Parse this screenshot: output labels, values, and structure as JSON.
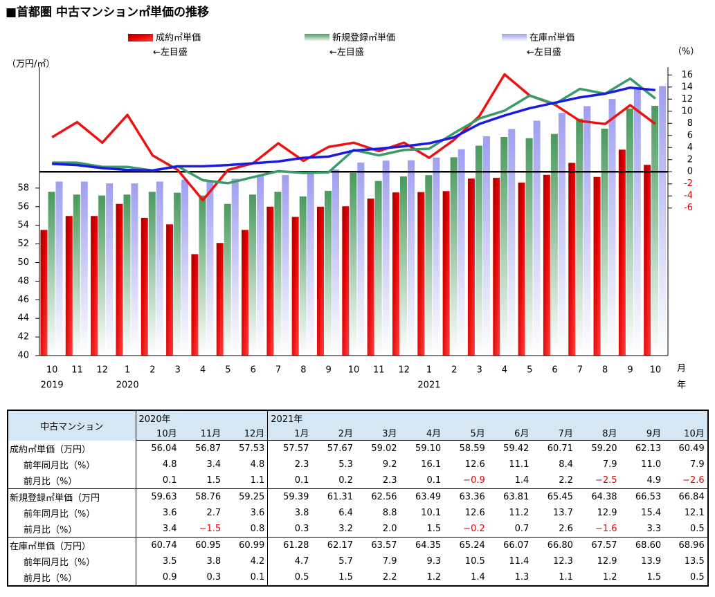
{
  "chart_data": {
    "type": "bar_line",
    "title": "■首都圏 中古マンション㎡単価の推移",
    "y_label": "（万円/㎡）",
    "y2_label": "（%）",
    "x_label": "月",
    "year_title": "年",
    "categories": [
      "10",
      "11",
      "12",
      "1",
      "2",
      "3",
      "4",
      "5",
      "6",
      "7",
      "8",
      "9",
      "10",
      "11",
      "12",
      "1",
      "2",
      "3",
      "4",
      "5",
      "6",
      "7",
      "8",
      "9",
      "10"
    ],
    "year_labels": [
      "2019",
      null,
      null,
      "2020",
      null,
      null,
      null,
      null,
      null,
      null,
      null,
      null,
      null,
      null,
      null,
      "2021",
      null,
      null,
      null,
      null,
      null,
      null,
      null,
      null,
      null
    ],
    "ylim": [
      40,
      71
    ],
    "yticks": [
      40,
      42,
      44,
      46,
      48,
      50,
      52,
      54,
      56,
      58
    ],
    "y2lim": [
      -30.4,
      17.3
    ],
    "y2ticks": [
      -6,
      -4,
      -2,
      0,
      2,
      4,
      6,
      8,
      10,
      12,
      14,
      16
    ],
    "series": [
      {
        "name": "成約㎡単価",
        "note": "←左目盛",
        "color": "#e00000",
        "line_color": "#ee1111",
        "values": [
          53.5,
          55.0,
          55.0,
          56.3,
          54.8,
          54.1,
          50.9,
          52.1,
          53.5,
          56.0,
          54.9,
          56.0,
          56.04,
          56.87,
          57.53,
          57.57,
          57.67,
          59.02,
          59.1,
          58.59,
          59.42,
          60.71,
          59.2,
          62.13,
          60.49
        ],
        "yoy": [
          5.7,
          8.2,
          4.8,
          9.4,
          2.7,
          0.3,
          -4.7,
          0.3,
          1.4,
          4.7,
          1.8,
          4.1,
          4.8,
          3.4,
          4.8,
          2.3,
          5.3,
          9.2,
          16.1,
          12.6,
          11.1,
          8.4,
          7.9,
          11.0,
          7.9
        ]
      },
      {
        "name": "新規登録㎡単価",
        "note": "←左目盛",
        "color": "#4a9a5e",
        "line_color": "#3a9a6a",
        "values": [
          57.6,
          57.3,
          57.2,
          57.3,
          57.6,
          57.5,
          57.2,
          56.3,
          57.3,
          57.6,
          57.1,
          57.7,
          59.63,
          58.76,
          59.25,
          59.39,
          61.31,
          62.56,
          63.49,
          63.36,
          63.81,
          65.45,
          64.38,
          66.53,
          66.84
        ],
        "yoy": [
          1.5,
          1.5,
          0.8,
          0.8,
          0.2,
          0.9,
          -1.4,
          -1.9,
          -0.9,
          0.1,
          -0.2,
          -0.1,
          3.6,
          2.7,
          3.6,
          3.8,
          6.4,
          8.8,
          10.1,
          12.6,
          11.2,
          13.7,
          12.9,
          15.4,
          12.1
        ]
      },
      {
        "name": "在庫㎡単価",
        "note": "←左目盛",
        "color": "#9f9ff0",
        "line_color": "#1a1ae0",
        "values": [
          58.7,
          58.7,
          58.5,
          58.5,
          58.7,
          58.9,
          58.7,
          59.0,
          59.4,
          59.4,
          59.6,
          60.0,
          60.74,
          60.95,
          60.99,
          61.28,
          62.17,
          63.57,
          64.35,
          65.24,
          66.07,
          66.8,
          67.57,
          68.6,
          68.96
        ],
        "yoy": [
          1.3,
          1.1,
          0.6,
          0.3,
          0.2,
          0.9,
          0.9,
          1.1,
          1.4,
          1.7,
          2.3,
          2.5,
          3.5,
          3.8,
          4.2,
          4.7,
          5.7,
          7.9,
          9.3,
          10.5,
          11.4,
          12.3,
          12.9,
          13.9,
          13.5
        ]
      }
    ]
  },
  "table": {
    "corner": "中古マンション",
    "years": [
      {
        "label": "2020年",
        "span": 3
      },
      {
        "label": "2021年",
        "span": 10
      }
    ],
    "months": [
      "10月",
      "11月",
      "12月",
      "1月",
      "2月",
      "3月",
      "4月",
      "5月",
      "6月",
      "7月",
      "8月",
      "9月",
      "10月"
    ],
    "rows": [
      [
        "成約㎡単価（万円）",
        "56.04",
        "56.87",
        "57.53",
        "57.57",
        "57.67",
        "59.02",
        "59.10",
        "58.59",
        "59.42",
        "60.71",
        "59.20",
        "62.13",
        "60.49"
      ],
      [
        "前年同月比（%）",
        "4.8",
        "3.4",
        "4.8",
        "2.3",
        "5.3",
        "9.2",
        "16.1",
        "12.6",
        "11.1",
        "8.4",
        "7.9",
        "11.0",
        "7.9"
      ],
      [
        "前月比（%）",
        "0.1",
        "1.5",
        "1.1",
        "0.1",
        "0.2",
        "2.3",
        "0.1",
        "−0.9",
        "1.4",
        "2.2",
        "−2.5",
        "4.9",
        "−2.6"
      ],
      [
        "新規登録㎡単価（万円",
        "59.63",
        "58.76",
        "59.25",
        "59.39",
        "61.31",
        "62.56",
        "63.49",
        "63.36",
        "63.81",
        "65.45",
        "64.38",
        "66.53",
        "66.84"
      ],
      [
        "前年同月比（%）",
        "3.6",
        "2.7",
        "3.6",
        "3.8",
        "6.4",
        "8.8",
        "10.1",
        "12.6",
        "11.2",
        "13.7",
        "12.9",
        "15.4",
        "12.1"
      ],
      [
        "前月比（%）",
        "3.4",
        "−1.5",
        "0.8",
        "0.3",
        "3.2",
        "2.0",
        "1.5",
        "−0.2",
        "0.7",
        "2.6",
        "−1.6",
        "3.3",
        "0.5"
      ],
      [
        "在庫㎡単価（万円）",
        "60.74",
        "60.95",
        "60.99",
        "61.28",
        "62.17",
        "63.57",
        "64.35",
        "65.24",
        "66.07",
        "66.80",
        "67.57",
        "68.60",
        "68.96"
      ],
      [
        "前年同月比（%）",
        "3.5",
        "3.8",
        "4.2",
        "4.7",
        "5.7",
        "7.9",
        "9.3",
        "10.5",
        "11.4",
        "12.3",
        "12.9",
        "13.9",
        "13.5"
      ],
      [
        "前月比（%）",
        "0.9",
        "0.3",
        "0.1",
        "0.5",
        "1.5",
        "2.2",
        "1.2",
        "1.4",
        "1.3",
        "1.1",
        "1.2",
        "1.5",
        "0.5"
      ]
    ]
  }
}
